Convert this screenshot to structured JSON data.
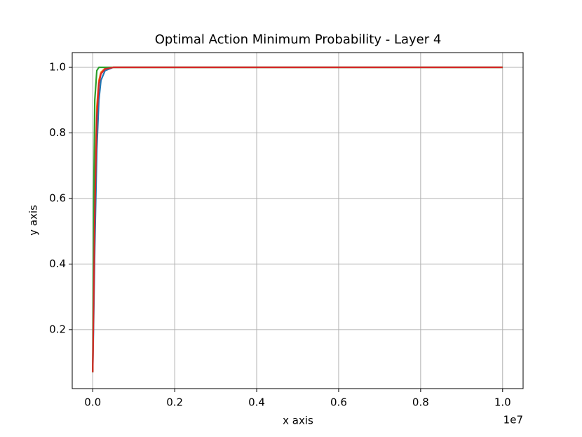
{
  "chart_data": {
    "type": "line",
    "title": "Optimal Action Minimum Probability - Layer 4",
    "x_label": "x axis",
    "y_label": "y axis",
    "x_offset_label": "1e7",
    "x": [
      0,
      25000,
      50000,
      100000,
      150000,
      200000,
      300000,
      500000,
      1000000,
      10000000
    ],
    "series": [
      {
        "color": "#1f77b4",
        "values": [
          0.07,
          0.25,
          0.45,
          0.75,
          0.9,
          0.96,
          0.99,
          1.0,
          1.0,
          1.0
        ]
      },
      {
        "color": "#ff7f0e",
        "values": [
          0.07,
          0.35,
          0.6,
          0.88,
          0.96,
          0.985,
          0.997,
          1.0,
          1.0,
          1.0
        ]
      },
      {
        "color": "#2ca02c",
        "values": [
          0.07,
          0.6,
          0.9,
          0.99,
          1.0,
          1.0,
          1.0,
          1.0,
          1.0,
          1.0
        ]
      },
      {
        "color": "#d62728",
        "values": [
          0.07,
          0.3,
          0.55,
          0.85,
          0.95,
          0.98,
          0.995,
          1.0,
          1.0,
          1.0
        ]
      }
    ],
    "xlim": [
      -500000,
      10500000
    ],
    "xticks": [
      {
        "value": 0,
        "label": "0.0"
      },
      {
        "value": 2000000,
        "label": "0.2"
      },
      {
        "value": 4000000,
        "label": "0.4"
      },
      {
        "value": 6000000,
        "label": "0.6"
      },
      {
        "value": 8000000,
        "label": "0.8"
      },
      {
        "value": 10000000,
        "label": "1.0"
      }
    ],
    "ylim": [
      0.02,
      1.045
    ],
    "yticks": [
      0.2,
      0.4,
      0.6,
      0.8,
      {
        "value": 1.0,
        "label": "1.0"
      }
    ],
    "grid": true
  }
}
